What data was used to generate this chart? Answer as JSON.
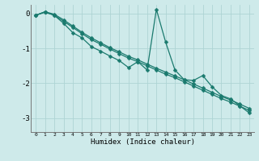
{
  "xlabel": "Humidex (Indice chaleur)",
  "xlim": [
    -0.5,
    23.5
  ],
  "ylim": [
    -3.4,
    0.25
  ],
  "yticks": [
    0,
    -1,
    -2,
    -3
  ],
  "xticks": [
    0,
    1,
    2,
    3,
    4,
    5,
    6,
    7,
    8,
    9,
    10,
    11,
    12,
    13,
    14,
    15,
    16,
    17,
    18,
    19,
    20,
    21,
    22,
    23
  ],
  "bg_color": "#ceeaea",
  "line_color": "#1a7a6e",
  "grid_color": "#aed4d4",
  "line_straight1_x": [
    0,
    1,
    2,
    3,
    4,
    5,
    6,
    7,
    8,
    9,
    10,
    11,
    12,
    13,
    14,
    15,
    16,
    17,
    18,
    19,
    20,
    21,
    22,
    23
  ],
  "line_straight1_y": [
    -0.05,
    0.04,
    -0.05,
    -0.22,
    -0.4,
    -0.58,
    -0.75,
    -0.88,
    -1.02,
    -1.15,
    -1.28,
    -1.38,
    -1.5,
    -1.62,
    -1.74,
    -1.84,
    -1.96,
    -2.08,
    -2.2,
    -2.32,
    -2.44,
    -2.54,
    -2.66,
    -2.78
  ],
  "line_straight2_x": [
    0,
    1,
    2,
    3,
    4,
    5,
    6,
    7,
    8,
    9,
    10,
    11,
    12,
    13,
    14,
    15,
    16,
    17,
    18,
    19,
    20,
    21,
    22,
    23
  ],
  "line_straight2_y": [
    -0.05,
    0.05,
    -0.02,
    -0.18,
    -0.36,
    -0.54,
    -0.7,
    -0.84,
    -0.98,
    -1.1,
    -1.23,
    -1.33,
    -1.45,
    -1.57,
    -1.68,
    -1.79,
    -1.9,
    -2.02,
    -2.14,
    -2.26,
    -2.38,
    -2.48,
    -2.6,
    -2.72
  ],
  "line_wiggly_x": [
    0,
    1,
    2,
    3,
    4,
    5,
    6,
    7,
    8,
    9,
    10,
    11,
    12,
    13,
    14,
    15,
    16,
    17,
    18,
    19,
    20,
    21,
    22,
    23
  ],
  "line_wiggly_y": [
    -0.05,
    0.05,
    -0.05,
    -0.28,
    -0.55,
    -0.7,
    -0.95,
    -1.08,
    -1.22,
    -1.35,
    -1.55,
    -1.38,
    -1.62,
    0.12,
    -0.82,
    -1.62,
    -1.9,
    -1.92,
    -1.78,
    -2.1,
    -2.35,
    -2.45,
    -2.65,
    -2.85
  ]
}
